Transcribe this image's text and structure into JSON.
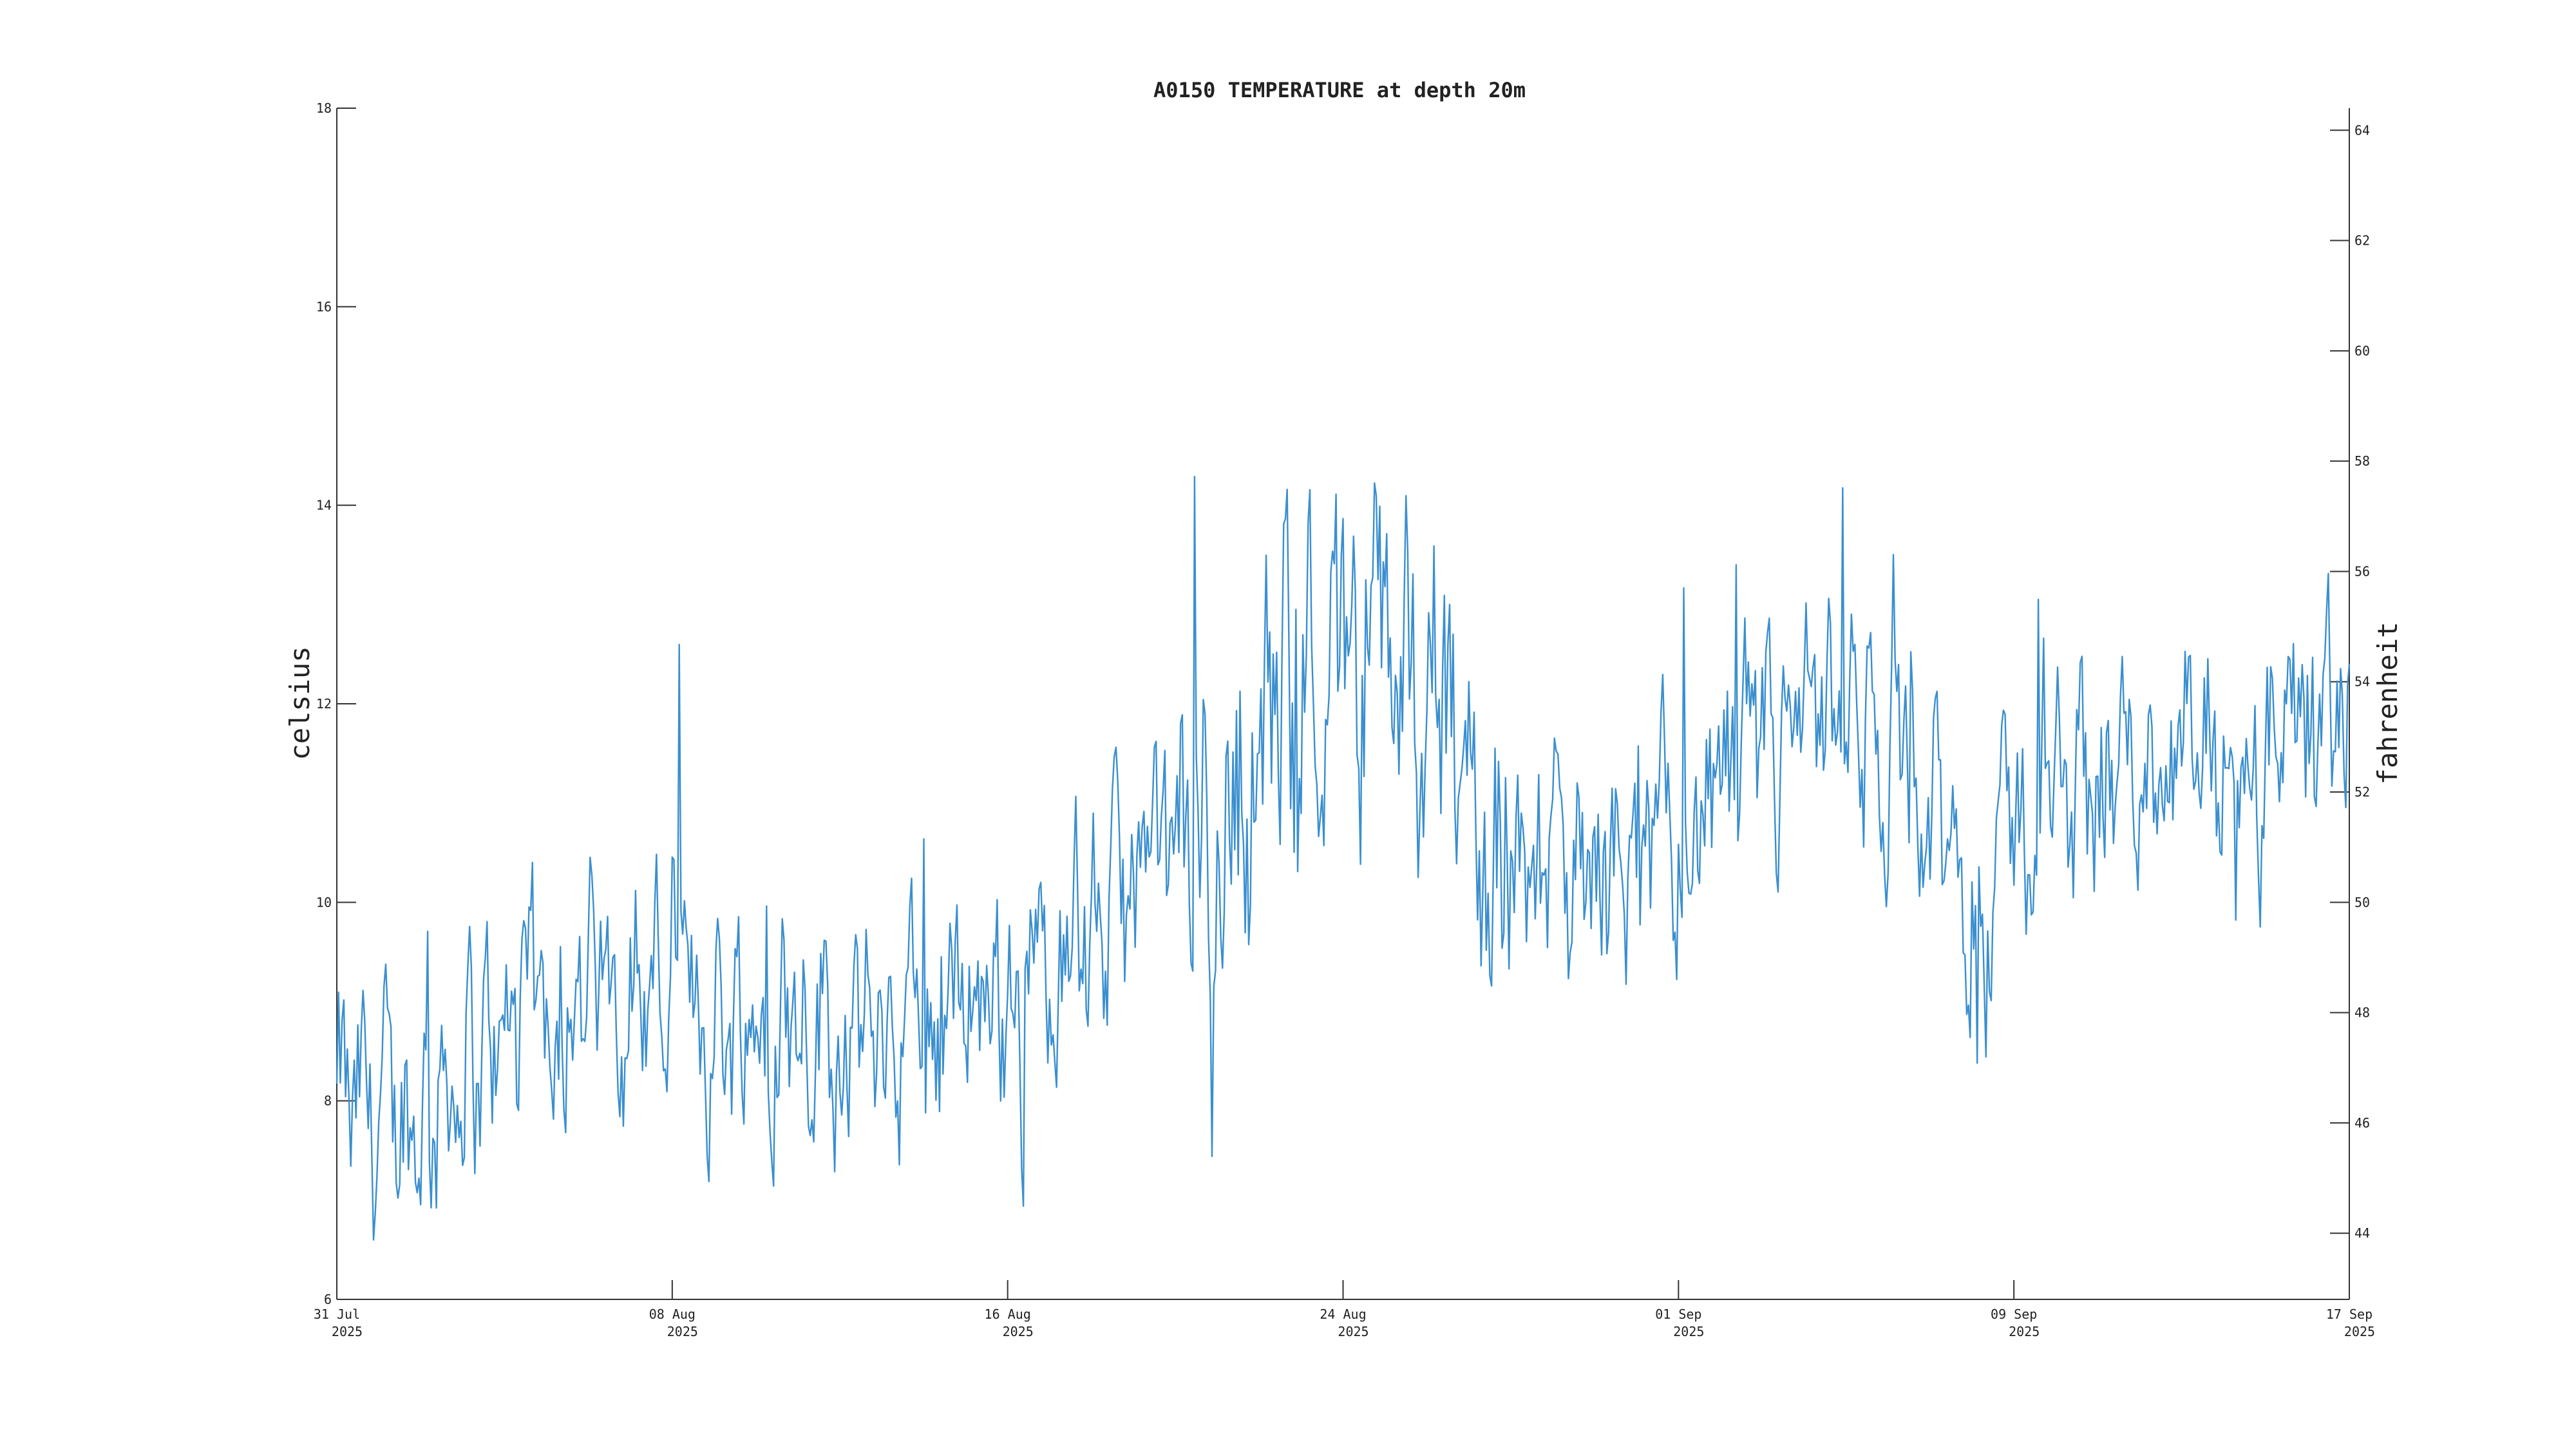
{
  "chart_data": {
    "type": "line",
    "title": "A0150 TEMPERATURE at depth 20m",
    "ylabel": "celsius",
    "y2label": "fahrenheit",
    "xlim": [
      "2025-07-31",
      "2025-09-17"
    ],
    "ylim": [
      6,
      18
    ],
    "y2lim": [
      42.8,
      64.4
    ],
    "yticks": [
      "6",
      "8",
      "10",
      "12",
      "14",
      "16",
      "18"
    ],
    "y2ticks": [
      "44",
      "46",
      "48",
      "50",
      "52",
      "54",
      "56",
      "58",
      "60",
      "62",
      "64"
    ],
    "xticks": [
      {
        "date": "2025-07-31",
        "label": "31 Jul",
        "year": "2025"
      },
      {
        "date": "2025-08-08",
        "label": "08 Aug",
        "year": "2025"
      },
      {
        "date": "2025-08-16",
        "label": "16 Aug",
        "year": "2025"
      },
      {
        "date": "2025-08-24",
        "label": "24 Aug",
        "year": "2025"
      },
      {
        "date": "2025-09-01",
        "label": "01 Sep",
        "year": "2025"
      },
      {
        "date": "2025-09-09",
        "label": "09 Sep",
        "year": "2025"
      },
      {
        "date": "2025-09-17",
        "label": "17 Sep",
        "year": "2025"
      }
    ],
    "grid": false,
    "line_color": "#3a8fd0",
    "series": [
      {
        "x": [
          "2025-07-31",
          "2025-08-01",
          "2025-08-02",
          "2025-08-03",
          "2025-08-04",
          "2025-08-05",
          "2025-08-06",
          "2025-08-07",
          "2025-08-08",
          "2025-08-09",
          "2025-08-10",
          "2025-08-11",
          "2025-08-12",
          "2025-08-13",
          "2025-08-14",
          "2025-08-15",
          "2025-08-16",
          "2025-08-17",
          "2025-08-18",
          "2025-08-19",
          "2025-08-20",
          "2025-08-21",
          "2025-08-22",
          "2025-08-23",
          "2025-08-24",
          "2025-08-25",
          "2025-08-26",
          "2025-08-27",
          "2025-08-28",
          "2025-08-29",
          "2025-08-30",
          "2025-08-31",
          "2025-09-01",
          "2025-09-02",
          "2025-09-03",
          "2025-09-04",
          "2025-09-05",
          "2025-09-06",
          "2025-09-07",
          "2025-09-08",
          "2025-09-09",
          "2025-09-10",
          "2025-09-11",
          "2025-09-12",
          "2025-09-13",
          "2025-09-14",
          "2025-09-15",
          "2025-09-16",
          "2025-09-17"
        ],
        "values": [
          7.9,
          7.8,
          7.9,
          8.4,
          8.6,
          8.9,
          9.2,
          9.3,
          9.1,
          8.8,
          8.9,
          9.0,
          8.7,
          8.6,
          8.9,
          9.1,
          9.2,
          9.4,
          9.7,
          10.1,
          10.4,
          10.7,
          11.5,
          12.4,
          12.6,
          12.5,
          12.4,
          10.8,
          10.5,
          10.3,
          10.2,
          10.4,
          10.6,
          11.0,
          11.4,
          11.6,
          11.6,
          11.4,
          10.7,
          10.2,
          10.7,
          11.0,
          11.2,
          11.5,
          11.4,
          11.2,
          11.3,
          11.6,
          11.8
        ]
      }
    ]
  }
}
